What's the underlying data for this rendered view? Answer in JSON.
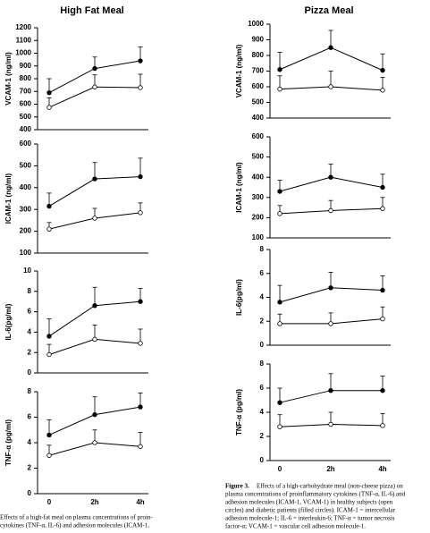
{
  "chart_data": [
    {
      "type": "line",
      "title": "High Fat Meal",
      "ylabel": "VCAM-1 (ng/ml)",
      "categories": [
        null,
        null,
        null
      ],
      "ylim": [
        400,
        1200
      ],
      "yticks": [
        400,
        500,
        600,
        700,
        800,
        900,
        1000,
        1100,
        1200
      ],
      "series": [
        {
          "color": "#000000",
          "marker": "filled",
          "values": [
            690,
            880,
            940
          ],
          "errors": [
            110,
            90,
            110
          ]
        },
        {
          "color": "#000000",
          "marker": "open",
          "values": [
            575,
            735,
            730
          ],
          "errors": [
            75,
            95,
            105
          ]
        }
      ]
    },
    {
      "type": "line",
      "ylabel": "ICAM-1 (ng/ml)",
      "categories": [
        null,
        null,
        null
      ],
      "ylim": [
        100,
        600
      ],
      "yticks": [
        100,
        200,
        300,
        400,
        500,
        600
      ],
      "series": [
        {
          "color": "#000000",
          "marker": "filled",
          "values": [
            315,
            440,
            450
          ],
          "errors": [
            60,
            75,
            85
          ]
        },
        {
          "color": "#000000",
          "marker": "open",
          "values": [
            210,
            260,
            285
          ],
          "errors": [
            30,
            45,
            45
          ]
        }
      ]
    },
    {
      "type": "line",
      "ylabel": "IL-6(pg/ml)",
      "categories": [
        null,
        null,
        null
      ],
      "ylim": [
        0,
        10
      ],
      "yticks": [
        0,
        2,
        4,
        6,
        8,
        10
      ],
      "series": [
        {
          "color": "#000000",
          "marker": "filled",
          "values": [
            3.6,
            6.6,
            7.0
          ],
          "errors": [
            1.7,
            1.8,
            1.3
          ]
        },
        {
          "color": "#000000",
          "marker": "open",
          "values": [
            1.8,
            3.3,
            2.9
          ],
          "errors": [
            1.0,
            1.4,
            1.4
          ]
        }
      ]
    },
    {
      "type": "line",
      "ylabel": "TNF-α (pg/ml)",
      "categories": [
        "0",
        "2h",
        "4h"
      ],
      "ylim": [
        0,
        8
      ],
      "yticks": [
        0,
        2,
        4,
        6,
        8
      ],
      "series": [
        {
          "color": "#000000",
          "marker": "filled",
          "values": [
            4.6,
            6.2,
            6.8
          ],
          "errors": [
            1.2,
            1.4,
            1.1
          ]
        },
        {
          "color": "#000000",
          "marker": "open",
          "values": [
            3.0,
            4.0,
            3.7
          ],
          "errors": [
            0.8,
            1.0,
            1.1
          ]
        }
      ]
    },
    {
      "type": "line",
      "title": "Pizza Meal",
      "ylabel": "VCAM-1 (ng/ml)",
      "categories": [
        null,
        null,
        null
      ],
      "ylim": [
        400,
        1000
      ],
      "yticks": [
        400,
        500,
        600,
        700,
        800,
        900,
        1000
      ],
      "series": [
        {
          "color": "#000000",
          "marker": "filled",
          "values": [
            710,
            850,
            705
          ],
          "errors": [
            110,
            110,
            105
          ]
        },
        {
          "color": "#000000",
          "marker": "open",
          "values": [
            585,
            600,
            578
          ],
          "errors": [
            85,
            100,
            82
          ]
        }
      ]
    },
    {
      "type": "line",
      "ylabel": "ICAM-1 (ng/ml)",
      "categories": [
        null,
        null,
        null
      ],
      "ylim": [
        100,
        600
      ],
      "yticks": [
        100,
        200,
        300,
        400,
        500,
        600
      ],
      "series": [
        {
          "color": "#000000",
          "marker": "filled",
          "values": [
            330,
            400,
            350
          ],
          "errors": [
            55,
            65,
            65
          ]
        },
        {
          "color": "#000000",
          "marker": "open",
          "values": [
            220,
            235,
            245
          ],
          "errors": [
            40,
            50,
            55
          ]
        }
      ]
    },
    {
      "type": "line",
      "ylabel": "IL-6(pg/ml)",
      "categories": [
        null,
        null,
        null
      ],
      "ylim": [
        0,
        8
      ],
      "yticks": [
        0,
        2,
        4,
        6,
        8
      ],
      "series": [
        {
          "color": "#000000",
          "marker": "filled",
          "values": [
            3.6,
            4.8,
            4.6
          ],
          "errors": [
            1.4,
            1.3,
            1.2
          ]
        },
        {
          "color": "#000000",
          "marker": "open",
          "values": [
            1.8,
            1.8,
            2.2
          ],
          "errors": [
            0.8,
            0.9,
            1.0
          ]
        }
      ]
    },
    {
      "type": "line",
      "ylabel": "TNF-α (pg/ml)",
      "categories": [
        "0",
        "2h",
        "4h"
      ],
      "ylim": [
        0,
        8
      ],
      "yticks": [
        0,
        2,
        4,
        6,
        8
      ],
      "series": [
        {
          "color": "#000000",
          "marker": "filled",
          "values": [
            4.8,
            5.8,
            5.8
          ],
          "errors": [
            1.2,
            1.4,
            1.2
          ]
        },
        {
          "color": "#000000",
          "marker": "open",
          "values": [
            2.8,
            3.0,
            2.9
          ],
          "errors": [
            1.0,
            1.0,
            1.0
          ]
        }
      ]
    }
  ],
  "captions": {
    "left": [
      "Effects of a high-fat meal on plasma concentrations of proin-",
      "cytokines (TNF-α, IL-6) and adhesion molecules (ICAM-1,"
    ],
    "right": {
      "label": "Figure 3.",
      "lines": [
        "Effects of a high-carbohydrate meal (non-cheese pizza) on",
        "plasma concentrations of proinflammatory cytokines (TNF-α, IL-6) and",
        "adhesion molecules (ICAM-1, VCAM-1) in healthy subjects (open",
        "circles) and diabetic patients (filled circles). ICAM-1 = intercellular",
        "adhesion molecule-1; IL-6 = interleukin-6; TNF-α = tumor necrosis",
        "factor-α; VCAM-1 = vascular cell adhesion molecule-1."
      ]
    }
  }
}
